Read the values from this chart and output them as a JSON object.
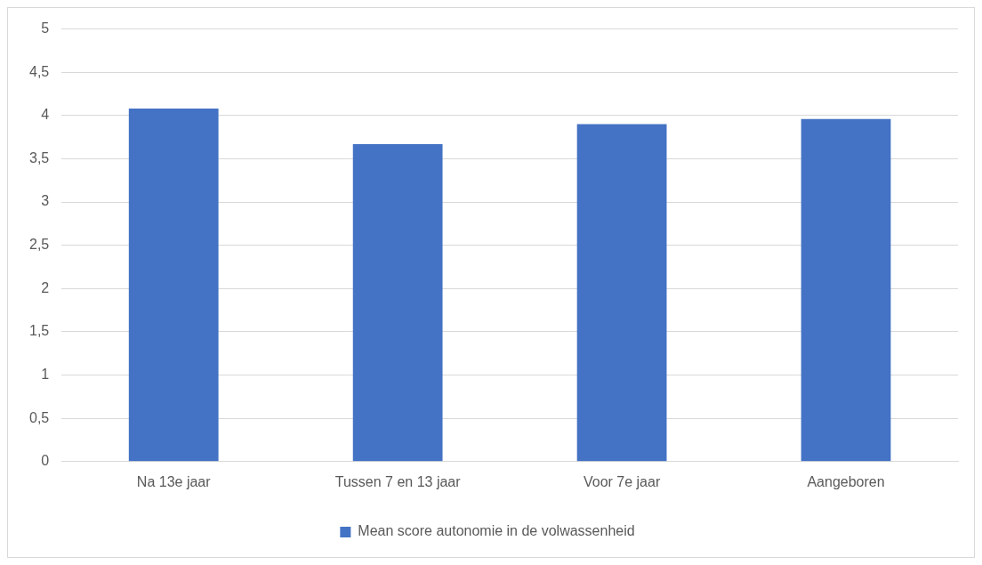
{
  "chart_data": {
    "type": "bar",
    "categories": [
      "Na 13e jaar",
      "Tussen 7 en 13 jaar",
      "Voor 7e jaar",
      "Aangeboren"
    ],
    "series": [
      {
        "name": "Mean score autonomie in de volwassenheid",
        "color": "#4472c4",
        "values": [
          4.08,
          3.67,
          3.9,
          3.96
        ]
      }
    ],
    "ylim": [
      0,
      5
    ],
    "yticks": [
      0,
      {
        "value": 0.5,
        "label": "0,5"
      },
      1,
      {
        "value": 1.5,
        "label": "1,5"
      },
      2,
      {
        "value": 2.5,
        "label": "2,5"
      },
      3,
      {
        "value": 3.5,
        "label": "3,5"
      },
      4,
      {
        "value": 4.5,
        "label": "4,5"
      },
      5
    ],
    "grid": "y",
    "legend": "bottom"
  }
}
